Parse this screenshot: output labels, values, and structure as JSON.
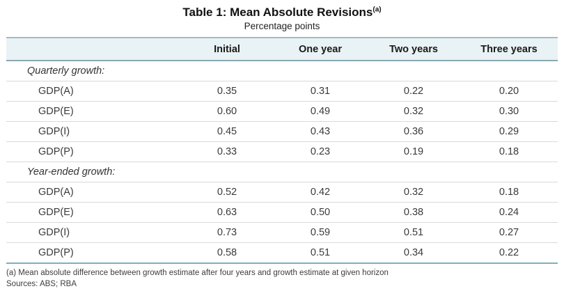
{
  "table": {
    "title": "Table 1: Mean Absolute Revisions",
    "title_superscript": "(a)",
    "subtitle": "Percentage points",
    "columns": [
      "Initial",
      "One year",
      "Two years",
      "Three years"
    ],
    "sections": [
      {
        "label": "Quarterly growth:",
        "rows": [
          {
            "label": "GDP(A)",
            "values": [
              "0.35",
              "0.31",
              "0.22",
              "0.20"
            ]
          },
          {
            "label": "GDP(E)",
            "values": [
              "0.60",
              "0.49",
              "0.32",
              "0.30"
            ]
          },
          {
            "label": "GDP(I)",
            "values": [
              "0.45",
              "0.43",
              "0.36",
              "0.29"
            ]
          },
          {
            "label": "GDP(P)",
            "values": [
              "0.33",
              "0.23",
              "0.19",
              "0.18"
            ]
          }
        ]
      },
      {
        "label": "Year-ended growth:",
        "rows": [
          {
            "label": "GDP(A)",
            "values": [
              "0.52",
              "0.42",
              "0.32",
              "0.18"
            ]
          },
          {
            "label": "GDP(E)",
            "values": [
              "0.63",
              "0.50",
              "0.38",
              "0.24"
            ]
          },
          {
            "label": "GDP(I)",
            "values": [
              "0.73",
              "0.59",
              "0.51",
              "0.27"
            ]
          },
          {
            "label": "GDP(P)",
            "values": [
              "0.58",
              "0.51",
              "0.34",
              "0.22"
            ]
          }
        ]
      }
    ],
    "footnote": "(a) Mean absolute difference between growth estimate after four years and growth estimate at given horizon",
    "sources": "Sources: ABS; RBA",
    "colors": {
      "header_bg": "#e9f2f5",
      "header_border_top": "#a3bcc4",
      "header_border_bottom": "#8aa8b4",
      "row_border": "#d9d9d9",
      "bottom_border": "#7fafc0"
    }
  }
}
